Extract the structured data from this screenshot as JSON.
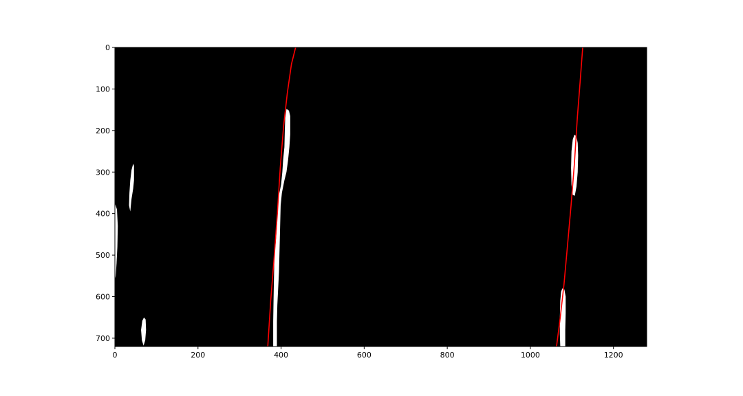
{
  "chart_data": {
    "type": "image",
    "xlim": [
      0,
      1280
    ],
    "ylim": [
      720,
      0
    ],
    "y_inverted": true,
    "grid": false,
    "legend": "none",
    "xticks": [
      0,
      200,
      400,
      600,
      800,
      1000,
      1200
    ],
    "yticks": [
      0,
      100,
      200,
      300,
      400,
      500,
      600,
      700
    ],
    "background_color": "#000000",
    "blob_color": "#ffffff",
    "fit_line_color": "#ff0000",
    "blobs": [
      {
        "name": "left-lane-blob",
        "points": [
          [
            413,
            148
          ],
          [
            419,
            152
          ],
          [
            422,
            165
          ],
          [
            422,
            210
          ],
          [
            420,
            240
          ],
          [
            417,
            270
          ],
          [
            413,
            300
          ],
          [
            408,
            320
          ],
          [
            402,
            350
          ],
          [
            399,
            380
          ],
          [
            398,
            420
          ],
          [
            397,
            460
          ],
          [
            396,
            500
          ],
          [
            395,
            540
          ],
          [
            393,
            580
          ],
          [
            391,
            620
          ],
          [
            390,
            660
          ],
          [
            390,
            720
          ],
          [
            381,
            720
          ],
          [
            381,
            660
          ],
          [
            382,
            600
          ],
          [
            383,
            550
          ],
          [
            384,
            500
          ],
          [
            387,
            470
          ],
          [
            390,
            430
          ],
          [
            392,
            380
          ],
          [
            394,
            360
          ],
          [
            400,
            330
          ],
          [
            403,
            300
          ],
          [
            405,
            270
          ],
          [
            408,
            240
          ],
          [
            409,
            200
          ],
          [
            410,
            170
          ]
        ]
      },
      {
        "name": "right-lane-upper-blob",
        "points": [
          [
            1106,
            210
          ],
          [
            1111,
            214
          ],
          [
            1114,
            230
          ],
          [
            1115,
            260
          ],
          [
            1114,
            300
          ],
          [
            1111,
            335
          ],
          [
            1107,
            357
          ],
          [
            1102,
            355
          ],
          [
            1099,
            330
          ],
          [
            1098,
            290
          ],
          [
            1099,
            250
          ],
          [
            1102,
            222
          ]
        ]
      },
      {
        "name": "right-lane-lower-blob",
        "points": [
          [
            1077,
            580
          ],
          [
            1082,
            583
          ],
          [
            1085,
            600
          ],
          [
            1085,
            640
          ],
          [
            1084,
            680
          ],
          [
            1084,
            720
          ],
          [
            1072,
            720
          ],
          [
            1071,
            690
          ],
          [
            1071,
            650
          ],
          [
            1072,
            610
          ],
          [
            1074,
            588
          ]
        ]
      },
      {
        "name": "left-edge-blob-upper",
        "points": [
          [
            44,
            280
          ],
          [
            46,
            285
          ],
          [
            46,
            320
          ],
          [
            44,
            340
          ],
          [
            40,
            365
          ],
          [
            37,
            395
          ],
          [
            34,
            380
          ],
          [
            35,
            350
          ],
          [
            37,
            320
          ],
          [
            40,
            295
          ]
        ]
      },
      {
        "name": "left-edge-blob-middle",
        "points": [
          [
            0,
            375
          ],
          [
            5,
            390
          ],
          [
            7,
            430
          ],
          [
            6,
            480
          ],
          [
            4,
            520
          ],
          [
            2,
            550
          ],
          [
            0,
            560
          ]
        ]
      },
      {
        "name": "left-edge-blob-lower",
        "points": [
          [
            70,
            650
          ],
          [
            74,
            655
          ],
          [
            75,
            680
          ],
          [
            73,
            705
          ],
          [
            69,
            718
          ],
          [
            65,
            705
          ],
          [
            63,
            680
          ],
          [
            66,
            658
          ]
        ]
      }
    ],
    "fit_lines": [
      {
        "name": "left-lane-fit",
        "points": [
          [
            435,
            0
          ],
          [
            425,
            40
          ],
          [
            415,
            110
          ],
          [
            406,
            190
          ],
          [
            398,
            290
          ],
          [
            391,
            400
          ],
          [
            383,
            510
          ],
          [
            375,
            610
          ],
          [
            368,
            720
          ]
        ]
      },
      {
        "name": "right-lane-fit",
        "points": [
          [
            1126,
            0
          ],
          [
            1120,
            80
          ],
          [
            1113,
            170
          ],
          [
            1106,
            280
          ],
          [
            1098,
            380
          ],
          [
            1090,
            470
          ],
          [
            1081,
            570
          ],
          [
            1072,
            650
          ],
          [
            1063,
            720
          ]
        ]
      }
    ]
  }
}
